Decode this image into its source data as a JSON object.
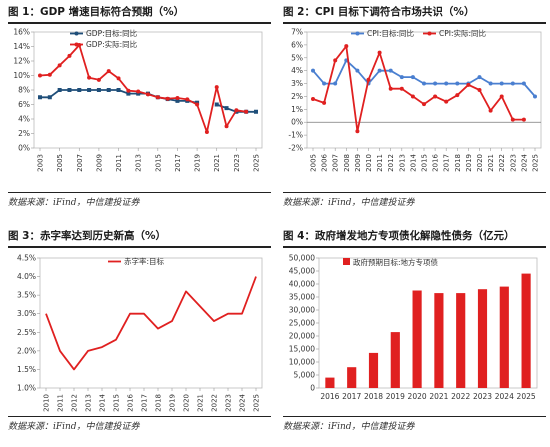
{
  "colors": {
    "red": "#e02020",
    "blue": "#1f4e79",
    "lightblue": "#4a7fd0"
  },
  "panels": [
    {
      "title": "图 1：GDP 增速目标符合预期（%）",
      "source": "数据来源：iFind，中信建投证券",
      "chart_data": {
        "type": "line",
        "title": "",
        "xlabel": "",
        "ylabel": "",
        "x": [
          2003,
          2004,
          2005,
          2006,
          2007,
          2008,
          2009,
          2010,
          2011,
          2012,
          2013,
          2014,
          2015,
          2016,
          2017,
          2018,
          2019,
          2020,
          2021,
          2022,
          2023,
          2024,
          2025
        ],
        "x_tick_labels": [
          "2003",
          "2005",
          "2007",
          "2009",
          "2011",
          "2013",
          "2015",
          "2017",
          "2019",
          "2021",
          "2023",
          "2025"
        ],
        "y_ticks": [
          "0%",
          "2%",
          "4%",
          "6%",
          "8%",
          "10%",
          "12%",
          "14%",
          "16%"
        ],
        "ylim": [
          0,
          16
        ],
        "legend_position": "top-right",
        "series": [
          {
            "name": "GDP:目标:同比",
            "color": "#1f4e79",
            "marker": "square",
            "values": [
              7,
              7,
              8,
              8,
              8,
              8,
              8,
              8,
              8,
              7.5,
              7.5,
              7.5,
              7,
              6.75,
              6.5,
              6.5,
              6.25,
              null,
              6,
              5.5,
              5,
              5,
              5
            ]
          },
          {
            "name": "GDP:实际:同比",
            "color": "#e02020",
            "marker": "circle",
            "values": [
              10,
              10.1,
              11.4,
              12.7,
              14.2,
              9.7,
              9.4,
              10.6,
              9.6,
              7.9,
              7.8,
              7.4,
              7.0,
              6.8,
              6.9,
              6.7,
              6.0,
              2.2,
              8.4,
              3.0,
              5.2,
              5.0,
              null
            ]
          }
        ]
      }
    },
    {
      "title": "图 2：CPI 目标下调符合市场共识（%）",
      "source": "数据来源：iFind，中信建投证券",
      "chart_data": {
        "type": "line",
        "title": "",
        "xlabel": "",
        "ylabel": "",
        "x": [
          2005,
          2006,
          2007,
          2008,
          2009,
          2010,
          2011,
          2012,
          2013,
          2014,
          2015,
          2016,
          2017,
          2018,
          2019,
          2020,
          2021,
          2022,
          2023,
          2024,
          2025
        ],
        "x_tick_labels": [
          "2005",
          "2006",
          "2007",
          "2008",
          "2009",
          "2010",
          "2011",
          "2012",
          "2013",
          "2014",
          "2015",
          "2016",
          "2017",
          "2018",
          "2019",
          "2020",
          "2021",
          "2022",
          "2023",
          "2024",
          "2025"
        ],
        "y_ticks": [
          "-2%",
          "-1%",
          "0%",
          "1%",
          "2%",
          "3%",
          "4%",
          "5%",
          "6%",
          "7%"
        ],
        "ylim": [
          -2,
          7
        ],
        "legend_position": "top-right",
        "series": [
          {
            "name": "CPI:目标:同比",
            "color": "#4a7fd0",
            "marker": "circle",
            "values": [
              4,
              3,
              3,
              4.8,
              4,
              3,
              4,
              4,
              3.5,
              3.5,
              3,
              3,
              3,
              3,
              3,
              3.5,
              3,
              3,
              3,
              3,
              2
            ]
          },
          {
            "name": "CPI:实际:同比",
            "color": "#e02020",
            "marker": "circle",
            "values": [
              1.8,
              1.5,
              4.8,
              5.9,
              -0.7,
              3.3,
              5.4,
              2.6,
              2.6,
              2.0,
              1.4,
              2.0,
              1.6,
              2.1,
              2.9,
              2.5,
              0.9,
              2.0,
              0.2,
              0.2,
              null
            ]
          }
        ]
      }
    },
    {
      "title": "图 3：赤字率达到历史新高（%）",
      "source": "数据来源：iFind，中信建投证券",
      "chart_data": {
        "type": "line",
        "title": "",
        "xlabel": "",
        "ylabel": "",
        "x": [
          2010,
          2011,
          2012,
          2013,
          2014,
          2015,
          2016,
          2017,
          2018,
          2019,
          2020,
          2021,
          2022,
          2023,
          2024,
          2025
        ],
        "x_tick_labels": [
          "2010",
          "2011",
          "2012",
          "2013",
          "2014",
          "2015",
          "2016",
          "2017",
          "2018",
          "2019",
          "2020",
          "2021",
          "2022",
          "2023",
          "2024",
          "2025"
        ],
        "y_ticks": [
          "1.0%",
          "1.5%",
          "2.0%",
          "2.5%",
          "3.0%",
          "3.5%",
          "4.0%",
          "4.5%"
        ],
        "ylim": [
          1,
          4.5
        ],
        "legend_position": "top-left",
        "series": [
          {
            "name": "赤字率:目标",
            "color": "#e02020",
            "marker": "none",
            "values": [
              3.0,
              2.0,
              1.5,
              2.0,
              2.1,
              2.3,
              3.0,
              3.0,
              2.6,
              2.8,
              3.6,
              3.2,
              2.8,
              3.0,
              3.0,
              4.0
            ]
          }
        ]
      }
    },
    {
      "title": "图 4：政府增发地方专项债化解隐性债务（亿元）",
      "source": "数据来源：iFind，中信建投证券",
      "chart_data": {
        "type": "bar",
        "title": "",
        "xlabel": "",
        "ylabel": "",
        "categories": [
          "2016",
          "2017",
          "2018",
          "2019",
          "2020",
          "2021",
          "2022",
          "2023",
          "2024",
          "2025"
        ],
        "y_ticks": [
          "0",
          "5,000",
          "10,000",
          "15,000",
          "20,000",
          "25,000",
          "30,000",
          "35,000",
          "40,000",
          "45,000",
          "50,000"
        ],
        "ylim": [
          0,
          50000
        ],
        "legend_position": "top-left",
        "series": [
          {
            "name": "政府预期目标:地方专项债",
            "color": "#e02020",
            "values": [
              4000,
              8000,
              13500,
              21500,
              37500,
              36500,
              36500,
              38000,
              39000,
              44000
            ]
          }
        ]
      }
    }
  ]
}
